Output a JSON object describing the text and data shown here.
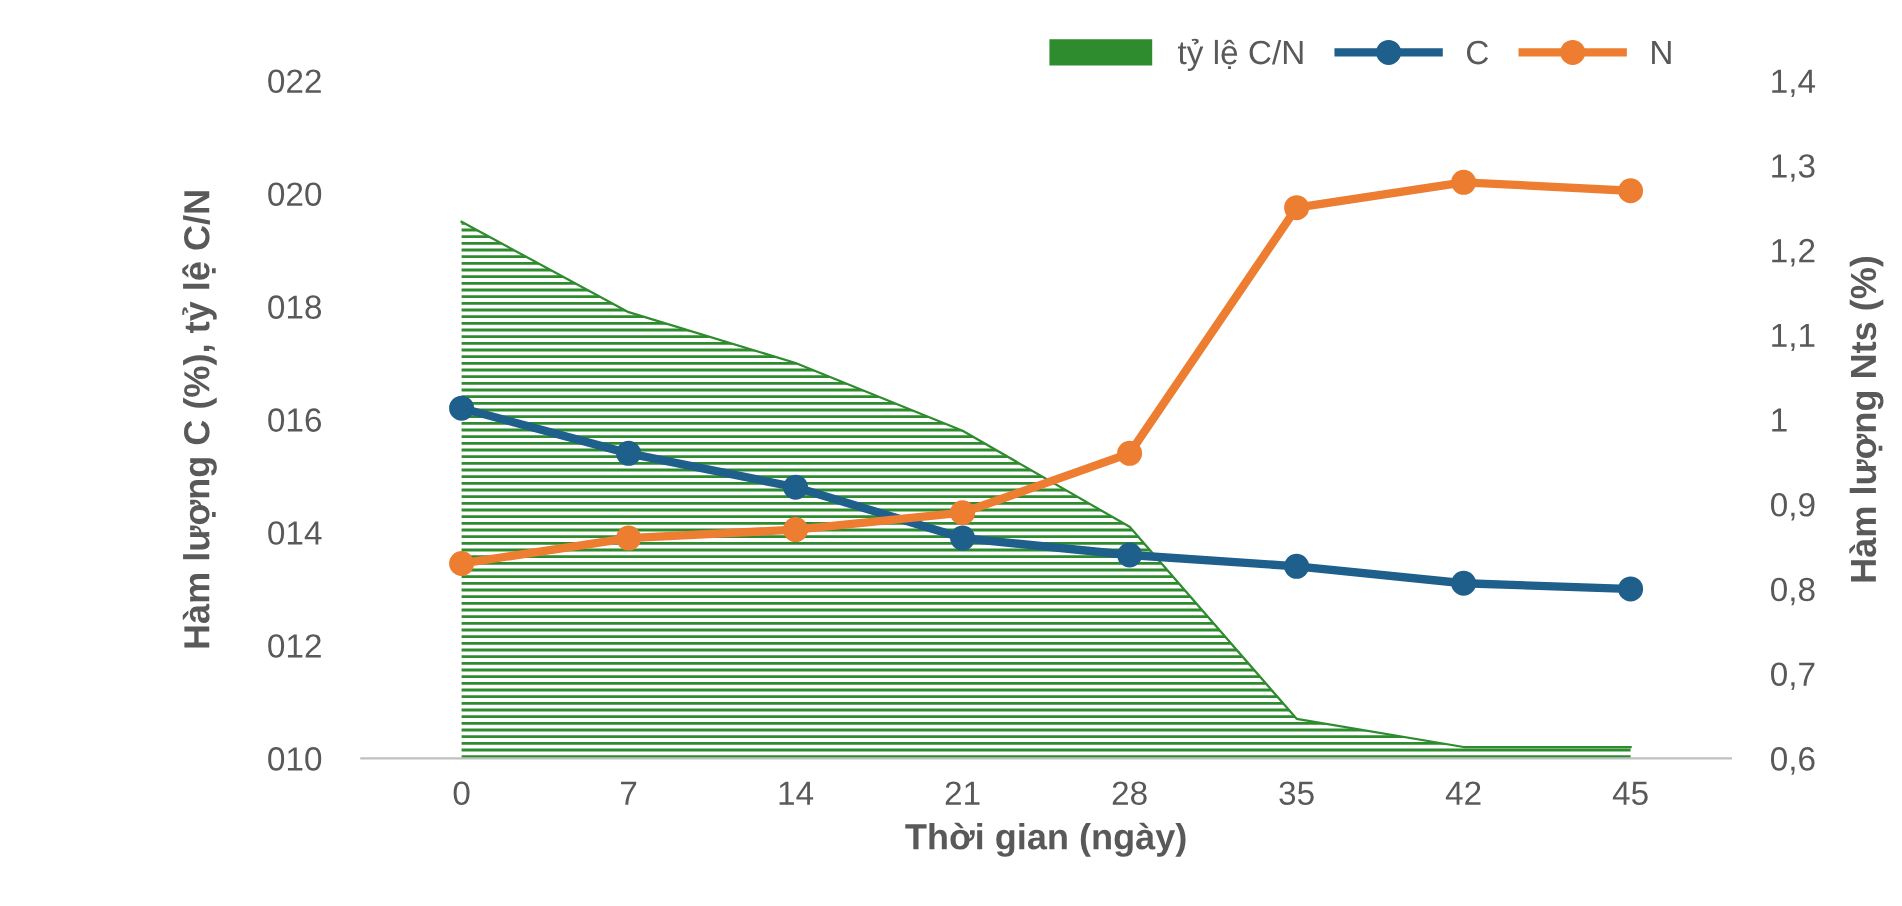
{
  "chart_data": {
    "type": "line",
    "xlabel": "Thời gian (ngày)",
    "ylabel": "Hàm lượng C (%), tỷ lệ C/N",
    "y2label": "Hàm lượng Nts (%)",
    "categories": [
      "0",
      "7",
      "14",
      "21",
      "28",
      "35",
      "42",
      "45"
    ],
    "series": [
      {
        "name": "tỷ lệ C/N",
        "type": "area",
        "color": "#2e8b2e",
        "values": [
          19.5,
          17.9,
          17.0,
          15.8,
          14.1,
          10.7,
          10.2,
          10.2
        ]
      },
      {
        "name": "C",
        "marker": "circle",
        "color": "#1f5f8b",
        "values": [
          16.2,
          15.4,
          14.8,
          13.9,
          13.6,
          13.4,
          13.1,
          13.0
        ]
      },
      {
        "name": "N",
        "marker": "circle",
        "axis": "y2",
        "color": "#ed7d31",
        "values": [
          0.83,
          0.86,
          0.87,
          0.89,
          0.96,
          1.25,
          1.28,
          1.27
        ]
      }
    ],
    "ylim": [
      10,
      22
    ],
    "yticks": [
      {
        "value": 10,
        "label": "010"
      },
      {
        "value": 12,
        "label": "012"
      },
      {
        "value": 14,
        "label": "014"
      },
      {
        "value": 16,
        "label": "016"
      },
      {
        "value": 18,
        "label": "018"
      },
      {
        "value": 20,
        "label": "020"
      },
      {
        "value": 22,
        "label": "022"
      }
    ],
    "y2lim": [
      0.6,
      1.4
    ],
    "y2ticks": [
      {
        "value": 0.6,
        "label": "0,6"
      },
      {
        "value": 0.7,
        "label": "0,7"
      },
      {
        "value": 0.8,
        "label": "0,8"
      },
      {
        "value": 0.9,
        "label": "0,9"
      },
      {
        "value": 1,
        "label": "1"
      },
      {
        "value": 1.1,
        "label": "1,1"
      },
      {
        "value": 1.2,
        "label": "1,2"
      },
      {
        "value": 1.3,
        "label": "1,3"
      },
      {
        "value": 1.4,
        "label": "1,4"
      }
    ],
    "line_style": "solid",
    "grid": false,
    "legend": "top right"
  }
}
